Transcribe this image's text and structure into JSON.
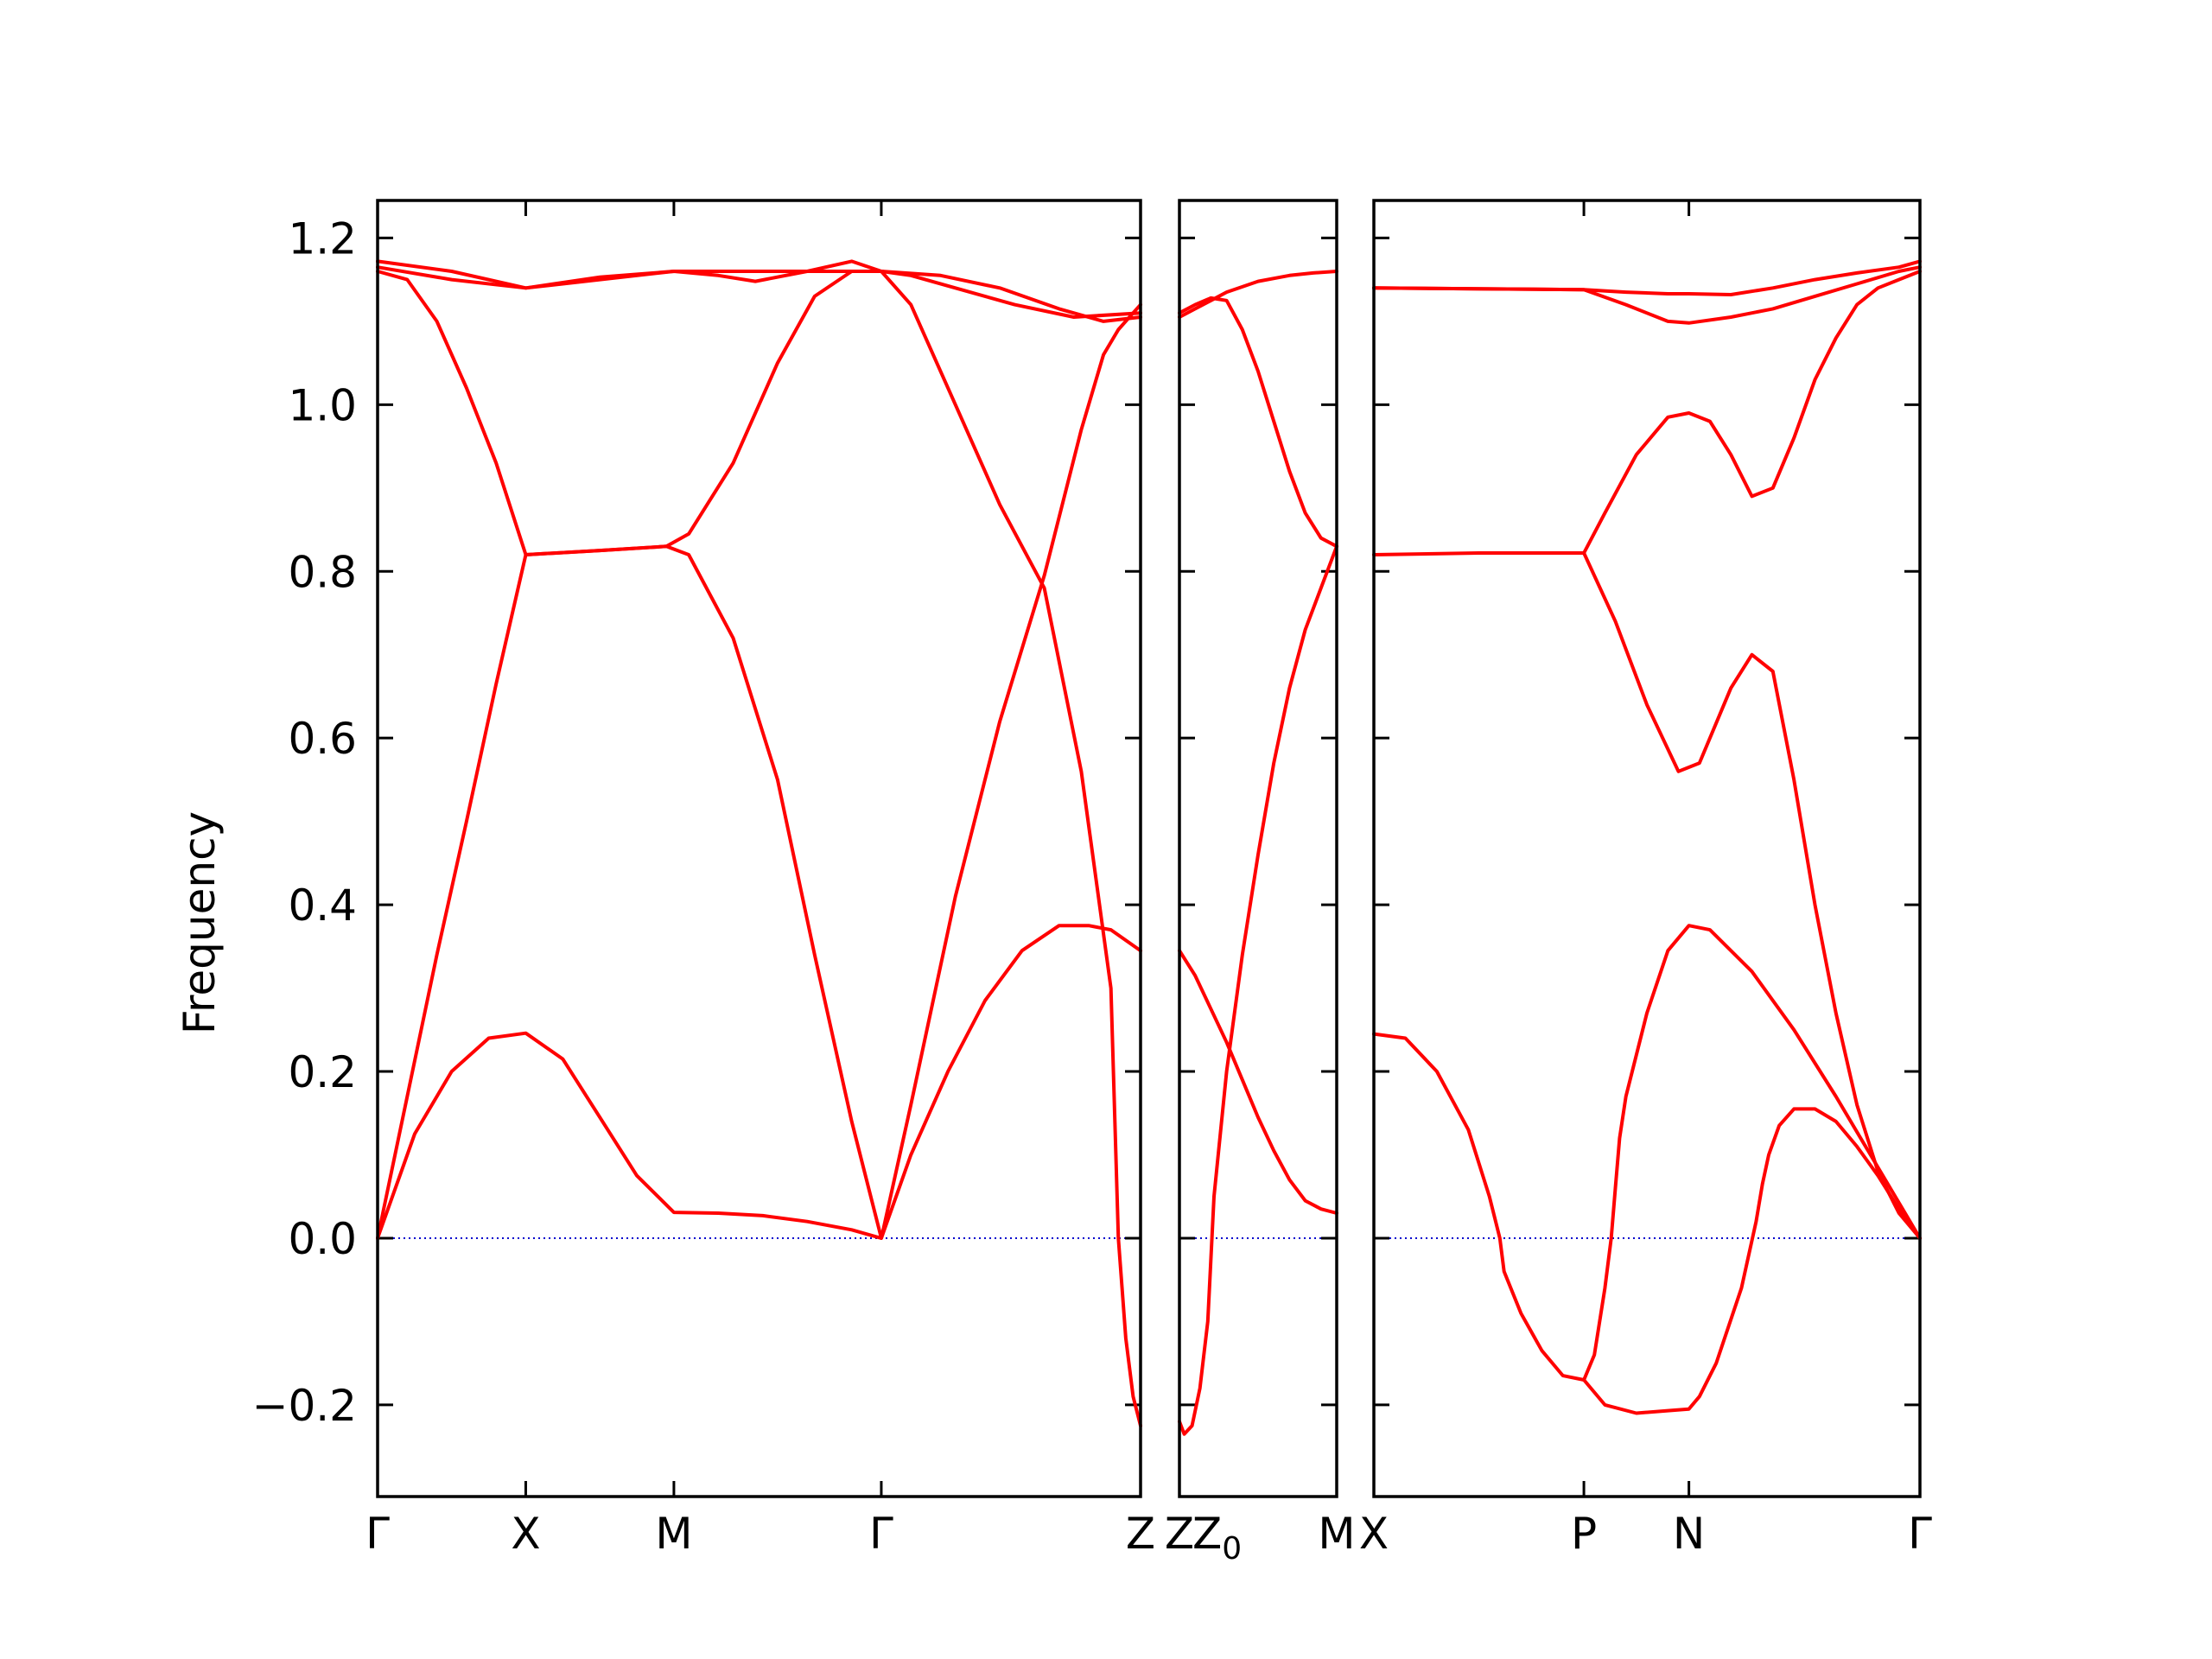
{
  "chart_data": {
    "type": "line",
    "title": "",
    "ylabel": "Frequency",
    "ylim": [
      -0.31,
      1.245
    ],
    "yticks": [
      {
        "value": -0.2,
        "label": "−0.2"
      },
      {
        "value": 0.0,
        "label": "0.0"
      },
      {
        "value": 0.2,
        "label": "0.2"
      },
      {
        "value": 0.4,
        "label": "0.4"
      },
      {
        "value": 0.6,
        "label": "0.6"
      },
      {
        "value": 0.8,
        "label": "0.8"
      },
      {
        "value": 1.0,
        "label": "1.0"
      },
      {
        "value": 1.2,
        "label": "1.2"
      }
    ],
    "grid": false,
    "legend": "none",
    "line_color": "#ff0000",
    "zero_line_color": "#0000cc",
    "panels": [
      {
        "name": "panel-1",
        "high_symmetry_points": [
          {
            "pos": 0.0,
            "label": "Γ"
          },
          {
            "pos": 1.0,
            "label": "X"
          },
          {
            "pos": 2.0,
            "label": "M"
          },
          {
            "pos": 3.4,
            "label": "Γ"
          },
          {
            "pos": 5.15,
            "label": "Z"
          }
        ],
        "xlim": [
          0,
          5.15
        ],
        "branches": [
          {
            "x": [
              0,
              0.25,
              0.5,
              0.75,
              1.0,
              1.25,
              1.5,
              1.75,
              2.0,
              2.3,
              2.6,
              2.9,
              3.2,
              3.4,
              3.6,
              3.85,
              4.1,
              4.35,
              4.6,
              4.8,
              4.95,
              5.15
            ],
            "y": [
              0.0,
              0.125,
              0.2,
              0.24,
              0.246,
              0.215,
              0.145,
              0.075,
              0.031,
              0.03,
              0.027,
              0.02,
              0.01,
              0.0,
              0.1,
              0.2,
              0.285,
              0.345,
              0.375,
              0.375,
              0.37,
              0.345
            ]
          },
          {
            "x": [
              0,
              0.2,
              0.4,
              0.6,
              0.8,
              1.0,
              1.5,
              1.95,
              2.1,
              2.4,
              2.7,
              2.95,
              3.2,
              3.4,
              3.6,
              3.9,
              4.2,
              4.5,
              4.75,
              4.9,
              5.0,
              5.1,
              5.15
            ],
            "y": [
              0.0,
              0.17,
              0.34,
              0.5,
              0.665,
              0.82,
              0.825,
              0.83,
              0.82,
              0.72,
              0.55,
              0.34,
              0.14,
              0.0,
              0.16,
              0.41,
              0.62,
              0.795,
              0.97,
              1.06,
              1.09,
              1.11,
              1.12
            ]
          },
          {
            "x": [
              0,
              0.2,
              0.4,
              0.6,
              0.8,
              1.0,
              1.5,
              1.95,
              2.1,
              2.4,
              2.7,
              2.95,
              3.2,
              3.4,
              3.6,
              3.9,
              4.2,
              4.5,
              4.75,
              4.95,
              5.0,
              5.05,
              5.1,
              5.15
            ],
            "y": [
              1.16,
              1.15,
              1.1,
              1.02,
              0.93,
              0.82,
              0.825,
              0.83,
              0.845,
              0.93,
              1.05,
              1.13,
              1.16,
              1.16,
              1.12,
              1.0,
              0.88,
              0.78,
              0.56,
              0.3,
              0.0,
              -0.12,
              -0.19,
              -0.225
            ]
          },
          {
            "x": [
              0,
              0.5,
              1.0,
              1.5,
              2.0,
              2.5,
              3.0,
              3.4,
              3.8,
              4.2,
              4.6,
              4.9,
              5.15
            ],
            "y": [
              1.165,
              1.15,
              1.14,
              1.153,
              1.16,
              1.16,
              1.16,
              1.16,
              1.155,
              1.14,
              1.115,
              1.1,
              1.105
            ]
          },
          {
            "x": [
              0,
              0.5,
              1.0,
              1.5,
              2.0,
              2.3,
              2.55,
              2.9,
              3.2,
              3.4,
              3.6,
              3.9,
              4.3,
              4.7,
              5.15
            ],
            "y": [
              1.172,
              1.16,
              1.14,
              1.15,
              1.16,
              1.155,
              1.148,
              1.16,
              1.172,
              1.16,
              1.155,
              1.14,
              1.12,
              1.105,
              1.11
            ]
          }
        ]
      },
      {
        "name": "panel-2",
        "high_symmetry_points": [
          {
            "pos": 0.0,
            "label": "Z"
          },
          {
            "pos": 1.0,
            "label": "M"
          }
        ],
        "label_suffix": {
          "index": 0,
          "text": "Z",
          "subscript": "0"
        },
        "xlim": [
          0,
          1
        ],
        "branches": [
          {
            "x": [
              0,
              0.1,
              0.2,
              0.3,
              0.4,
              0.5,
              0.6,
              0.7,
              0.8,
              0.9,
              1.0
            ],
            "y": [
              0.345,
              0.315,
              0.275,
              0.235,
              0.19,
              0.145,
              0.105,
              0.07,
              0.045,
              0.035,
              0.03
            ]
          },
          {
            "x": [
              0,
              0.03,
              0.08,
              0.13,
              0.18,
              0.22,
              0.3,
              0.4,
              0.5,
              0.6,
              0.7,
              0.8,
              0.9,
              1.0
            ],
            "y": [
              -0.22,
              -0.235,
              -0.225,
              -0.18,
              -0.1,
              0.05,
              0.2,
              0.34,
              0.46,
              0.57,
              0.66,
              0.73,
              0.78,
              0.83
            ]
          },
          {
            "x": [
              0,
              0.1,
              0.2,
              0.3,
              0.4,
              0.5,
              0.6,
              0.7,
              0.8,
              0.9,
              1.0
            ],
            "y": [
              1.11,
              1.12,
              1.128,
              1.125,
              1.09,
              1.04,
              0.98,
              0.92,
              0.87,
              0.84,
              0.83
            ]
          },
          {
            "x": [
              0,
              0.1,
              0.2,
              0.3,
              0.5,
              0.7,
              0.85,
              1.0
            ],
            "y": [
              1.105,
              1.115,
              1.125,
              1.135,
              1.148,
              1.155,
              1.158,
              1.16
            ]
          }
        ]
      },
      {
        "name": "panel-3",
        "high_symmetry_points": [
          {
            "pos": 0.0,
            "label": "X"
          },
          {
            "pos": 1.0,
            "label": "P"
          },
          {
            "pos": 1.5,
            "label": "N"
          },
          {
            "pos": 2.6,
            "label": "Γ"
          }
        ],
        "xlim": [
          0,
          2.6
        ],
        "branches": [
          {
            "x": [
              0,
              0.15,
              0.3,
              0.45,
              0.55,
              0.6,
              0.62,
              0.7,
              0.8,
              0.9,
              1.0,
              1.1,
              1.25,
              1.4,
              1.5,
              1.55,
              1.63,
              1.75,
              1.82,
              1.85,
              1.88,
              1.93,
              2.0,
              2.1,
              2.2,
              2.3,
              2.4,
              2.5,
              2.6
            ],
            "y": [
              0.245,
              0.24,
              0.2,
              0.13,
              0.05,
              0.0,
              -0.04,
              -0.09,
              -0.135,
              -0.165,
              -0.17,
              -0.2,
              -0.21,
              -0.207,
              -0.205,
              -0.19,
              -0.15,
              -0.06,
              0.02,
              0.065,
              0.1,
              0.135,
              0.155,
              0.155,
              0.14,
              0.11,
              0.075,
              0.035,
              0.0
            ]
          },
          {
            "x": [
              1.0,
              1.05,
              1.1,
              1.13,
              1.15,
              1.17,
              1.2,
              1.3,
              1.4,
              1.5,
              1.6,
              1.8,
              2.0,
              2.2,
              2.4,
              2.6
            ],
            "y": [
              -0.17,
              -0.14,
              -0.06,
              0.0,
              0.06,
              0.12,
              0.17,
              0.27,
              0.345,
              0.375,
              0.37,
              0.32,
              0.25,
              0.17,
              0.085,
              0.0
            ]
          },
          {
            "x": [
              0,
              0.5,
              1.0,
              1.15,
              1.3,
              1.45,
              1.55,
              1.7,
              1.8,
              1.9,
              2.0,
              2.1,
              2.2,
              2.3,
              2.4,
              2.5,
              2.6
            ],
            "y": [
              0.82,
              0.822,
              0.822,
              0.74,
              0.64,
              0.56,
              0.57,
              0.66,
              0.7,
              0.68,
              0.55,
              0.4,
              0.27,
              0.16,
              0.08,
              0.03,
              0.0
            ]
          },
          {
            "x": [
              1.0,
              1.1,
              1.25,
              1.4,
              1.5,
              1.6,
              1.7,
              1.8,
              1.9,
              2.0,
              2.1,
              2.2,
              2.3,
              2.4,
              2.5,
              2.6
            ],
            "y": [
              0.822,
              0.87,
              0.94,
              0.985,
              0.99,
              0.98,
              0.94,
              0.89,
              0.9,
              0.96,
              1.03,
              1.08,
              1.12,
              1.14,
              1.15,
              1.16
            ]
          },
          {
            "x": [
              0,
              0.5,
              1.0,
              1.2,
              1.4,
              1.5,
              1.7,
              1.9,
              2.1,
              2.3,
              2.5,
              2.6
            ],
            "y": [
              1.14,
              1.139,
              1.138,
              1.12,
              1.1,
              1.098,
              1.105,
              1.115,
              1.13,
              1.145,
              1.16,
              1.165
            ]
          },
          {
            "x": [
              0,
              0.5,
              1.0,
              1.2,
              1.4,
              1.5,
              1.7,
              1.9,
              2.1,
              2.3,
              2.5,
              2.6
            ],
            "y": [
              1.14,
              1.139,
              1.138,
              1.135,
              1.133,
              1.133,
              1.132,
              1.14,
              1.15,
              1.158,
              1.165,
              1.172
            ]
          }
        ]
      }
    ]
  }
}
